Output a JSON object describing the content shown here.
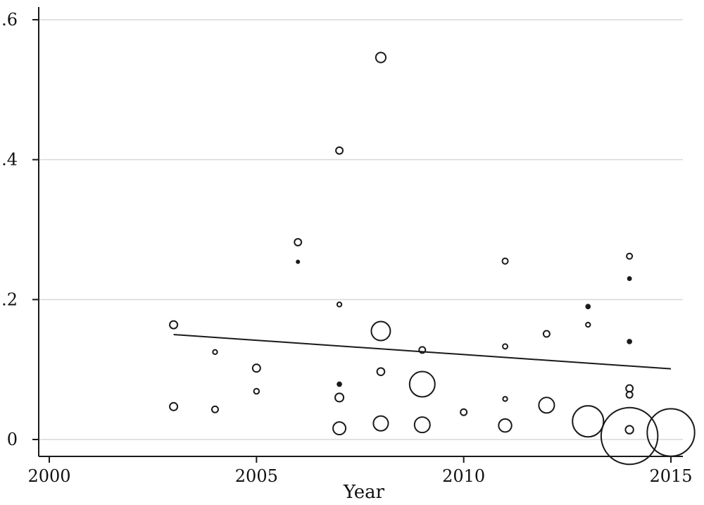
{
  "chart_data": {
    "type": "scatter",
    "title": "",
    "xlabel": "Year",
    "ylabel": "",
    "xlim": [
      2000,
      2015
    ],
    "ylim": [
      0,
      0.6
    ],
    "xticks": [
      2000,
      2005,
      2010,
      2015
    ],
    "xtick_labels": [
      "2000",
      "2005",
      "2010",
      "2015"
    ],
    "yticks": [
      0,
      0.2,
      0.4,
      0.6
    ],
    "ytick_labels": [
      "0",
      ".2",
      ".4",
      ".6"
    ],
    "grid": "horizontal",
    "legend": "none",
    "marker": "hollow circle, size proportional to weight",
    "points": [
      {
        "x": 2003,
        "y": 0.164,
        "w": 1.5
      },
      {
        "x": 2003,
        "y": 0.047,
        "w": 1.5
      },
      {
        "x": 2004,
        "y": 0.125,
        "w": 0.5
      },
      {
        "x": 2004,
        "y": 0.043,
        "w": 1.0
      },
      {
        "x": 2005,
        "y": 0.102,
        "w": 1.5
      },
      {
        "x": 2005,
        "y": 0.069,
        "w": 0.7
      },
      {
        "x": 2006,
        "y": 0.282,
        "w": 1.2
      },
      {
        "x": 2006,
        "y": 0.254,
        "w": 0.2
      },
      {
        "x": 2007,
        "y": 0.413,
        "w": 1.2
      },
      {
        "x": 2007,
        "y": 0.193,
        "w": 0.5
      },
      {
        "x": 2007,
        "y": 0.079,
        "w": 0.4
      },
      {
        "x": 2007,
        "y": 0.06,
        "w": 1.8
      },
      {
        "x": 2007,
        "y": 0.016,
        "w": 4.0
      },
      {
        "x": 2008,
        "y": 0.546,
        "w": 2.5
      },
      {
        "x": 2008,
        "y": 0.155,
        "w": 9.0
      },
      {
        "x": 2008,
        "y": 0.097,
        "w": 1.4
      },
      {
        "x": 2008,
        "y": 0.023,
        "w": 5.5
      },
      {
        "x": 2009,
        "y": 0.128,
        "w": 1.0
      },
      {
        "x": 2009,
        "y": 0.079,
        "w": 16.0
      },
      {
        "x": 2009,
        "y": 0.021,
        "w": 6.0
      },
      {
        "x": 2010,
        "y": 0.039,
        "w": 1.0
      },
      {
        "x": 2011,
        "y": 0.255,
        "w": 0.8
      },
      {
        "x": 2011,
        "y": 0.133,
        "w": 0.6
      },
      {
        "x": 2011,
        "y": 0.058,
        "w": 0.5
      },
      {
        "x": 2011,
        "y": 0.02,
        "w": 4.2
      },
      {
        "x": 2012,
        "y": 0.151,
        "w": 1.0
      },
      {
        "x": 2012,
        "y": 0.049,
        "w": 6.0
      },
      {
        "x": 2013,
        "y": 0.19,
        "w": 0.4
      },
      {
        "x": 2013,
        "y": 0.164,
        "w": 0.5
      },
      {
        "x": 2013,
        "y": 0.026,
        "w": 24.0
      },
      {
        "x": 2014,
        "y": 0.262,
        "w": 0.8
      },
      {
        "x": 2014,
        "y": 0.23,
        "w": 0.3
      },
      {
        "x": 2014,
        "y": 0.14,
        "w": 0.4
      },
      {
        "x": 2014,
        "y": 0.073,
        "w": 1.2
      },
      {
        "x": 2014,
        "y": 0.064,
        "w": 1.0
      },
      {
        "x": 2014,
        "y": 0.014,
        "w": 1.6
      },
      {
        "x": 2014,
        "y": 0.005,
        "w": 80.0
      },
      {
        "x": 2015,
        "y": 0.01,
        "w": 56.0
      }
    ],
    "fit_line": {
      "x": [
        2003,
        2015
      ],
      "y": [
        0.15,
        0.101
      ]
    },
    "colors": {
      "marker": "#1a1a1a",
      "line": "#1a1a1a",
      "grid": "#d9d9d9",
      "axis": "#1a1a1a"
    }
  }
}
